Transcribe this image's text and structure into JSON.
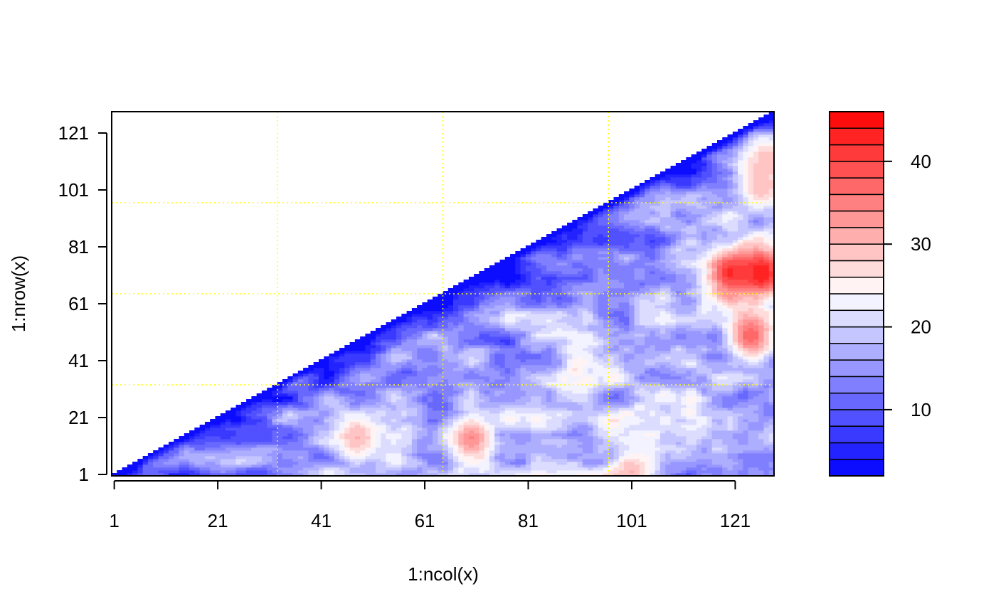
{
  "chart_data": {
    "type": "heatmap",
    "title": "",
    "xlabel": "1:ncol(x)",
    "ylabel": "1:nrow(x)",
    "n_cols": 128,
    "n_rows": 128,
    "matrix_shape": "upper-triangular (row <= col)",
    "x_ticks": [
      "1",
      "21",
      "41",
      "61",
      "81",
      "101",
      "121"
    ],
    "y_ticks": [
      "1",
      "21",
      "41",
      "61",
      "81",
      "101",
      "121"
    ],
    "x_tick_values": [
      1,
      21,
      41,
      61,
      81,
      101,
      121
    ],
    "y_tick_values": [
      1,
      21,
      41,
      61,
      81,
      101,
      121
    ],
    "xlim": [
      0.5,
      128.5
    ],
    "ylim": [
      0.5,
      128.5
    ],
    "grid_lines": {
      "x": [
        32.5,
        64.5,
        96.5
      ],
      "y": [
        32.5,
        64.5,
        96.5
      ],
      "color": "#ffff00",
      "style": "dotted"
    },
    "value_range": [
      2,
      46
    ],
    "hot_spots": [
      {
        "col": 48,
        "row": 14,
        "value": 30
      },
      {
        "col": 70,
        "row": 14,
        "value": 34
      },
      {
        "col": 101,
        "row": 2,
        "value": 30
      },
      {
        "col": 120,
        "row": 72,
        "value": 42
      },
      {
        "col": 126,
        "row": 72,
        "value": 44
      },
      {
        "col": 124,
        "row": 50,
        "value": 38
      },
      {
        "col": 126,
        "row": 102,
        "value": 30
      },
      {
        "col": 127,
        "row": 112,
        "value": 29
      }
    ],
    "legend": {
      "placement": "right",
      "breaks": [
        2,
        4,
        6,
        8,
        10,
        12,
        14,
        16,
        18,
        20,
        22,
        24,
        26,
        28,
        30,
        32,
        34,
        36,
        38,
        40,
        42,
        44,
        46
      ],
      "ticks": [
        "10",
        "20",
        "30",
        "40"
      ],
      "tick_values": [
        10,
        20,
        30,
        40
      ]
    }
  },
  "colors": {
    "low": "#0000ff",
    "mid": "#ffffff",
    "high": "#ff0000",
    "grid": "#ffff00",
    "axis": "#000000"
  }
}
